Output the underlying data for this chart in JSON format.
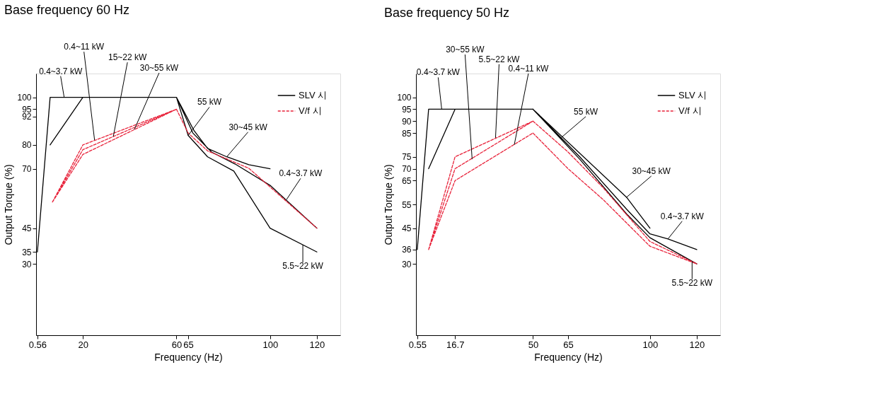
{
  "chart_data": [
    {
      "type": "line",
      "title": "Base frequency 60 Hz",
      "xlabel": "Frequency (Hz)",
      "ylabel": "Output Torque (%)",
      "xlim": [
        0,
        130
      ],
      "ylim": [
        0,
        110
      ],
      "xticks": [
        0.56,
        20,
        60,
        65,
        100,
        120
      ],
      "yticks": [
        30,
        35,
        45,
        70,
        80,
        92,
        95,
        100
      ],
      "legend": "top right",
      "marker": "none",
      "grid": false,
      "series": [
        {
          "name": "SLV 시",
          "color": "#000000",
          "line_style": "solid",
          "x": [
            0.56,
            6,
            60,
            null,
            6,
            20,
            null,
            60,
            67.5,
            73.3,
            81.5,
            90.9,
            100,
            null,
            60,
            67,
            75,
            85,
            100,
            120,
            null,
            60,
            65,
            73.3,
            84.5,
            100,
            120
          ],
          "values": [
            35,
            100,
            100,
            null,
            80,
            100,
            null,
            100,
            86,
            78.5,
            75,
            71.7,
            70,
            null,
            100,
            85,
            77,
            72,
            63,
            45,
            null,
            100,
            84,
            75,
            69,
            45,
            35
          ]
        },
        {
          "name": "V/f 시",
          "color": "#e8223a",
          "line_style": "dashed",
          "x": [
            7,
            20,
            60,
            null,
            7,
            20,
            60,
            null,
            7,
            20,
            60,
            null,
            60,
            65,
            73.3,
            90.9,
            120
          ],
          "values": [
            56,
            80,
            95,
            null,
            56,
            78,
            95,
            null,
            56,
            76,
            95,
            null,
            95,
            85,
            77.5,
            70.2,
            45
          ]
        }
      ],
      "annotations": [
        {
          "text": "0.4~3.7 kW",
          "x": 12,
          "y": 100
        },
        {
          "text": "0.4~11 kW",
          "x": 25,
          "y": 82
        },
        {
          "text": "15~22 kW",
          "x": 33,
          "y": 83.5
        },
        {
          "text": "30~55 kW",
          "x": 42,
          "y": 86.5
        },
        {
          "text": "55 kW",
          "x": 65,
          "y": 84
        },
        {
          "text": "30~45 kW",
          "x": 81.5,
          "y": 75
        },
        {
          "text": "0.4~3.7 kW",
          "x": 107,
          "y": 57
        },
        {
          "text": "5.5~22 kW",
          "x": 114,
          "y": 38
        }
      ]
    },
    {
      "type": "line",
      "title": "Base frequency 50 Hz",
      "xlabel": "Frequency (Hz)",
      "ylabel": "Output Torque (%)",
      "xlim": [
        0,
        130
      ],
      "ylim": [
        0,
        110
      ],
      "xticks": [
        0.55,
        16.7,
        50,
        65,
        100,
        120
      ],
      "yticks": [
        30,
        36,
        45,
        55,
        65,
        70,
        75,
        85,
        90,
        95,
        100
      ],
      "legend": "top right",
      "marker": "none",
      "grid": false,
      "series": [
        {
          "name": "SLV 시",
          "color": "#000000",
          "line_style": "solid",
          "x": [
            0.55,
            5.4,
            50,
            null,
            5.4,
            16.7,
            null,
            50,
            90,
            100,
            null,
            50,
            70,
            90,
            100,
            107.7,
            120,
            null,
            50,
            70,
            90,
            100,
            120
          ],
          "values": [
            36,
            95,
            95,
            null,
            70,
            95,
            null,
            95,
            58,
            45,
            null,
            95,
            75,
            53,
            42.6,
            40.5,
            36,
            null,
            95,
            74,
            51,
            41,
            30
          ]
        },
        {
          "name": "V/f 시",
          "color": "#e8223a",
          "line_style": "dashed",
          "x": [
            5.4,
            16.7,
            50,
            null,
            5.4,
            16.7,
            50,
            null,
            5.4,
            16.7,
            50,
            null,
            50,
            65,
            80,
            100,
            120,
            null,
            50,
            65,
            80,
            100,
            120
          ],
          "values": [
            36,
            75,
            90,
            null,
            36,
            70,
            90,
            null,
            36,
            65,
            85,
            null,
            90,
            77,
            62,
            39.4,
            30,
            null,
            85,
            70,
            57,
            37.4,
            30
          ]
        }
      ],
      "annotations": [
        {
          "text": "0.4~3.7 kW",
          "x": 11,
          "y": 95
        },
        {
          "text": "30~55 kW",
          "x": 24,
          "y": 74
        },
        {
          "text": "5.5~22 kW",
          "x": 34,
          "y": 83
        },
        {
          "text": "0.4~11 kW",
          "x": 42,
          "y": 80
        },
        {
          "text": "55 kW",
          "x": 62,
          "y": 83
        },
        {
          "text": "30~45 kW",
          "x": 90,
          "y": 58
        },
        {
          "text": "0.4~3.7 kW",
          "x": 107.7,
          "y": 40.5
        },
        {
          "text": "5.5~22 kW",
          "x": 118,
          "y": 31
        }
      ]
    }
  ]
}
